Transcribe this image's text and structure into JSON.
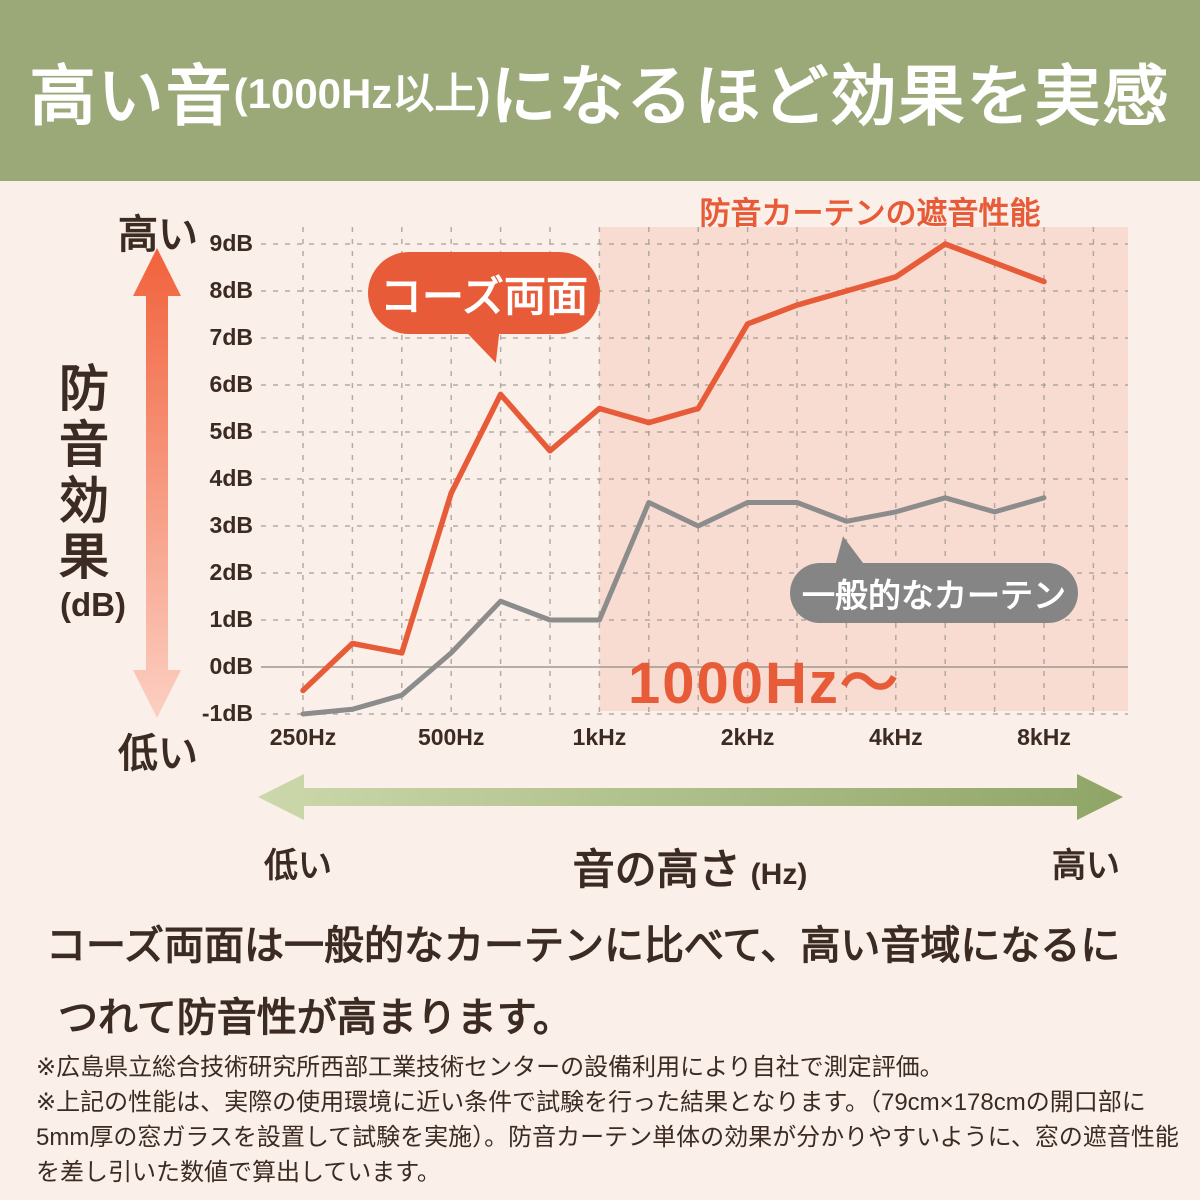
{
  "header": {
    "text_large_1": "高い音",
    "text_small": "(1000Hz以上)",
    "text_large_2": "になるほど効果を実感"
  },
  "y_axis": {
    "high_label": "高い",
    "low_label": "低い",
    "title_vertical": "防音効果",
    "unit": "(dB)",
    "tick_labels": [
      "9dB",
      "8dB",
      "7dB",
      "6dB",
      "5dB",
      "4dB",
      "3dB",
      "2dB",
      "1dB",
      "0dB",
      "-1dB"
    ]
  },
  "x_axis": {
    "tick_labels": [
      "250Hz",
      "500Hz",
      "1kHz",
      "2kHz",
      "4kHz",
      "8kHz"
    ]
  },
  "chart": {
    "title": "防音カーテンの遮音性能",
    "highlight_label": "1000Hz〜",
    "bubble_orange": "コーズ両面",
    "bubble_gray": "一般的なカーテン"
  },
  "chart_data": {
    "type": "line",
    "title": "防音カーテンの遮音性能",
    "xlabel": "音の高さ (Hz)",
    "ylabel": "防音効果 (dB)",
    "x_hz": [
      250,
      315,
      400,
      500,
      630,
      800,
      1000,
      1250,
      1600,
      2000,
      2500,
      3150,
      4000,
      5000,
      6300,
      8000
    ],
    "x_tick_positions_hz": [
      250,
      500,
      1000,
      2000,
      4000,
      8000
    ],
    "yticks_db": [
      9,
      8,
      7,
      6,
      5,
      4,
      3,
      2,
      1,
      0,
      -1
    ],
    "ylim": [
      -1.2,
      9.4
    ],
    "grid": true,
    "series": [
      {
        "name": "コーズ両面",
        "color": "#e85b38",
        "values": [
          -0.5,
          0.5,
          0.3,
          3.7,
          5.8,
          4.6,
          5.5,
          5.2,
          5.5,
          7.3,
          7.7,
          8.0,
          8.3,
          9.0,
          8.6,
          8.2
        ]
      },
      {
        "name": "一般的なカーテン",
        "color": "#8c8c8c",
        "values": [
          -1.0,
          -0.9,
          -0.6,
          0.3,
          1.4,
          1.0,
          1.0,
          3.5,
          3.0,
          3.5,
          3.5,
          3.1,
          3.3,
          3.6,
          3.3,
          3.6
        ]
      }
    ],
    "highlight_region": {
      "from_hz": 1000,
      "label": "1000Hz〜"
    }
  },
  "freq_axis": {
    "low_label": "低い",
    "title": "音の高さ",
    "unit": "(Hz)",
    "high_label": "高い"
  },
  "summary": {
    "line1": "コーズ両面は一般的なカーテンに比べて、高い音域になるに",
    "line2": "つれて防音性が高まります。"
  },
  "footnotes": {
    "note1": "※広島県立総合技術研究所西部工業技術センターの設備利用により自社で測定評価。",
    "note2_line1": "※上記の性能は、実際の使用環境に近い条件で試験を行った結果となります。（79cm×178cmの開口部に",
    "note2_line2": "5mm厚の窓ガラスを設置して試験を実施）。防音カーテン単体の効果が分かりやすいように、窓の遮音性能",
    "note2_line3": "を差し引いた数値で算出しています。"
  },
  "colors": {
    "header_bg": "#9ba979",
    "page_bg": "#faf0e9",
    "accent_orange": "#e85b38",
    "line_gray": "#8c8c8c",
    "bubble_gray": "#858585",
    "pink_region": "#f8dcd1",
    "text_dark": "#3b2b22",
    "grid": "#a39b93",
    "zero_line": "#a09890",
    "v_arrow_top": "#f1623c",
    "v_arrow_bottom": "#fccfc2",
    "h_arrow_left": "#ccd8ab",
    "h_arrow_right": "#8fa567"
  }
}
